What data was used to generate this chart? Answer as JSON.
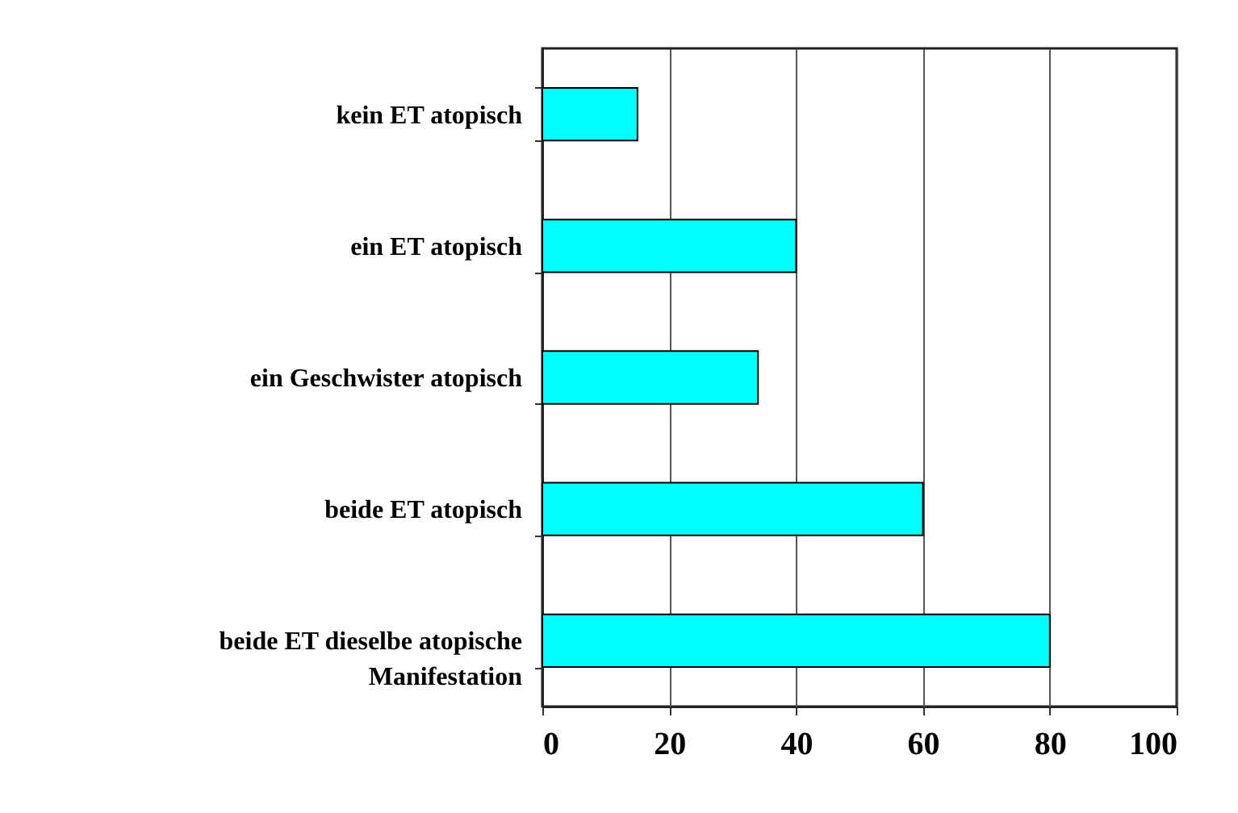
{
  "chart_data": {
    "type": "bar",
    "orientation": "horizontal",
    "categories": [
      "kein ET atopisch",
      "ein ET atopisch",
      "ein Geschwister atopisch",
      "beide ET atopisch",
      "beide ET dieselbe atopische Manifestation"
    ],
    "values": [
      15,
      40,
      34,
      60,
      80
    ],
    "color": "#00ffff",
    "xlim": [
      0,
      100
    ],
    "xticks": [
      0,
      20,
      40,
      60,
      80,
      100
    ],
    "grid": "x"
  }
}
